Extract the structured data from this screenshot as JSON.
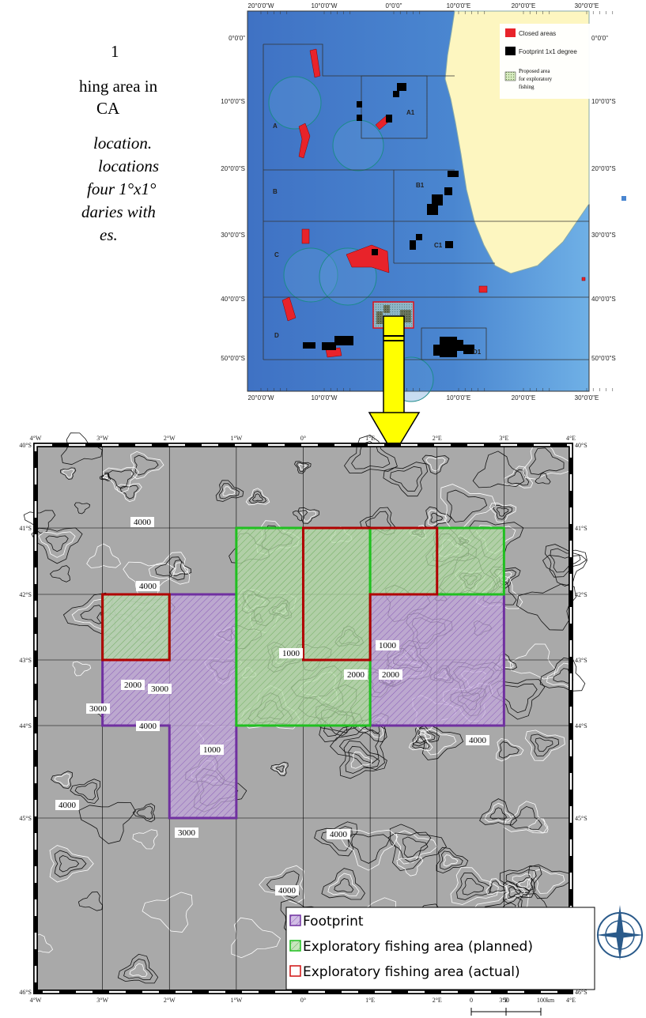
{
  "side_text": {
    "lines": [
      "1",
      "hing area in",
      "CA",
      "location.",
      "locations",
      "four 1°x1°",
      "daries with",
      "es."
    ]
  },
  "overview_map": {
    "lon_labels": [
      "20°0'0\"W",
      "10°0'0\"W",
      "0°0'0\"",
      "10°0'0\"E",
      "20°0'0\"E",
      "30°0'0\"E"
    ],
    "lat_labels": [
      "0°0'0\"",
      "10°0'0\"S",
      "20°0'0\"S",
      "30°0'0\"S",
      "40°0'0\"S",
      "50°0'0\"S"
    ],
    "legend": {
      "closed": "Closed areas",
      "footprint": "Footprint 1x1 degree",
      "proposed": [
        "Proposed area",
        "for exploratory",
        "fishing"
      ]
    },
    "regions": [
      "A",
      "A1",
      "B",
      "B1",
      "C",
      "C1",
      "D",
      "D1"
    ]
  },
  "detail_map": {
    "lon_labels": [
      "4°W",
      "3°W",
      "2°W",
      "1°W",
      "0°",
      "1°E",
      "2°E",
      "3°E",
      "4°E"
    ],
    "lat_labels": [
      "40°S",
      "41°S",
      "42°S",
      "43°S",
      "44°S",
      "45°S",
      "46°S"
    ],
    "contour_labels": [
      "4000",
      "4000",
      "1000",
      "1000",
      "2000",
      "2000",
      "2000",
      "3000",
      "3000",
      "4000",
      "1000",
      "4000",
      "3000",
      "4000",
      "4000",
      "4000"
    ],
    "legend": [
      "Footprint",
      "Exploratory fishing area (planned)",
      "Exploratory fishing area (actual)"
    ],
    "scale": [
      "0",
      "50",
      "100km"
    ]
  }
}
